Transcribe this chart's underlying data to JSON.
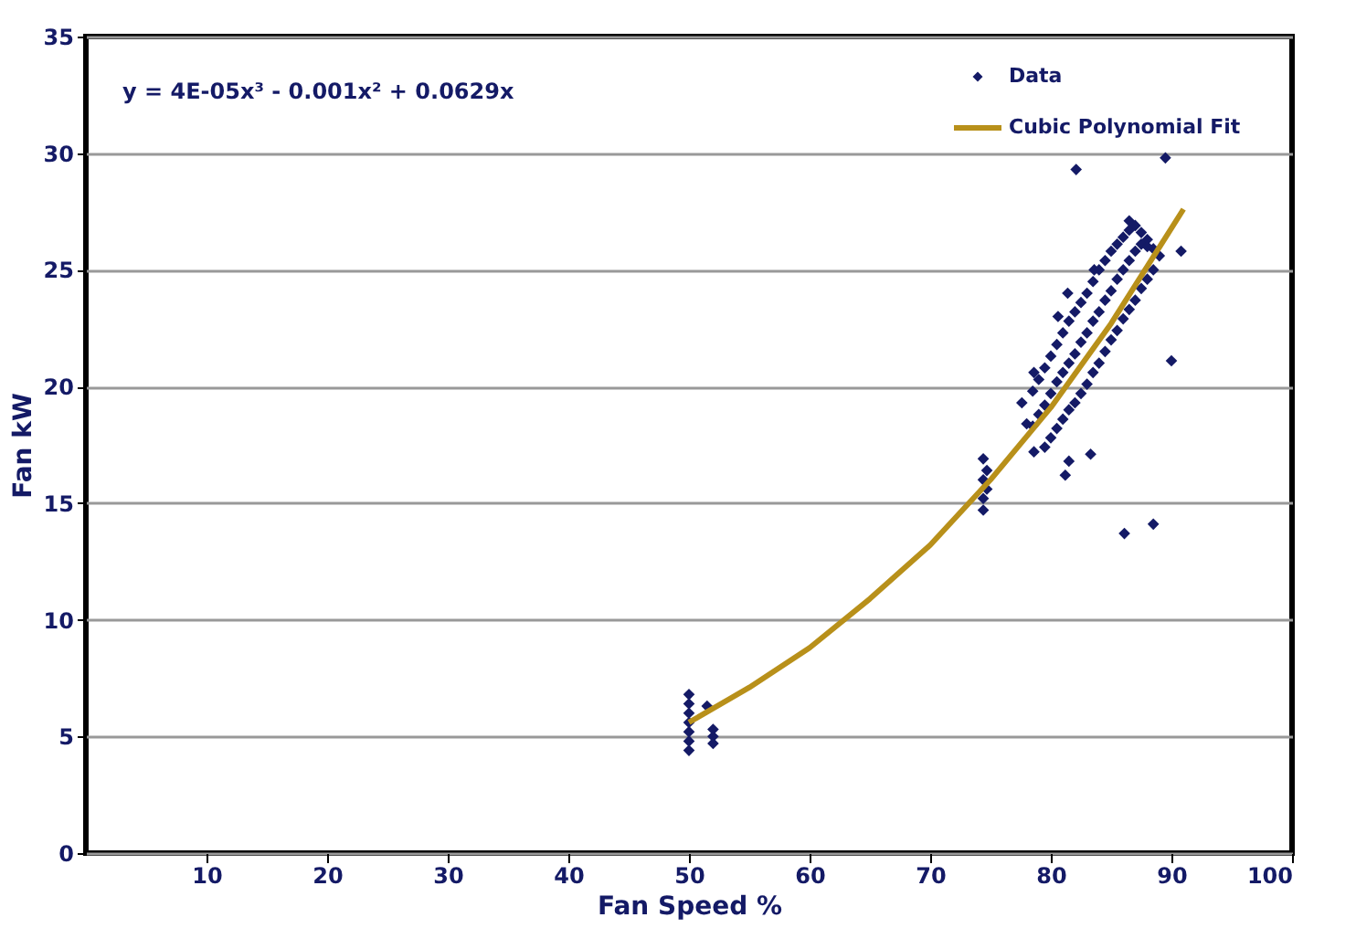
{
  "chart_data": {
    "type": "scatter",
    "xlabel": "Fan Speed %",
    "ylabel": "Fan kW",
    "annotations": [
      "y = 4E-05x³ - 0.001x² + 0.0629x"
    ],
    "xlim": [
      0,
      100
    ],
    "xticks": [
      10,
      20,
      30,
      40,
      50,
      60,
      70,
      80,
      90,
      100
    ],
    "ylim": [
      0,
      35
    ],
    "yticks": [
      0,
      5,
      10,
      15,
      20,
      25,
      30,
      35
    ],
    "grid": "y",
    "legend": "top right",
    "marker": "diamond",
    "series": [
      {
        "name": "Data",
        "color": "#141a66",
        "x": [
          50,
          50,
          50,
          50,
          50,
          50,
          50,
          51.5,
          52,
          52,
          52,
          74.4,
          74.4,
          74.7,
          74.4,
          74.7,
          74.4,
          82.1,
          89.5,
          90.8,
          90,
          86.1,
          88.5,
          83.3,
          81.5,
          81.2,
          78.6,
          80.6,
          81.4,
          83.6,
          86.5,
          77.6,
          78.6,
          78,
          78.5,
          79,
          79.5,
          80,
          80.5,
          81,
          81.5,
          82,
          82.5,
          83,
          83.5,
          84,
          84.5,
          85,
          85.5,
          86,
          86.5,
          87,
          87.5,
          88,
          88.5,
          89,
          79.5,
          80,
          80.5,
          81,
          81.5,
          82,
          82.5,
          83,
          83.5,
          84,
          84.5,
          85,
          85.5,
          86,
          86.5,
          87,
          87.5,
          88,
          88.5,
          78.5,
          79,
          79.5,
          80,
          80.5,
          81,
          81.5,
          82,
          82.5,
          83,
          83.5,
          84,
          84.5,
          85,
          85.5,
          86,
          86.5,
          87,
          87.5,
          88
        ],
        "values": [
          4.4,
          4.8,
          5.2,
          5.6,
          6.0,
          6.4,
          6.8,
          6.3,
          4.7,
          5.0,
          5.3,
          14.7,
          15.2,
          15.6,
          16.0,
          16.4,
          16.9,
          29.3,
          29.8,
          25.8,
          21.1,
          13.7,
          14.1,
          17.1,
          16.8,
          16.2,
          20.6,
          23.0,
          24.0,
          25.0,
          27.1,
          19.3,
          17.2,
          18.4,
          19.8,
          20.3,
          20.8,
          21.3,
          21.8,
          22.3,
          22.8,
          23.2,
          23.6,
          24.0,
          24.5,
          25.0,
          25.4,
          25.8,
          26.1,
          26.4,
          26.7,
          26.9,
          26.6,
          26.3,
          25.9,
          25.6,
          17.4,
          17.8,
          18.2,
          18.6,
          19.0,
          19.3,
          19.7,
          20.1,
          20.6,
          21.0,
          21.5,
          22.0,
          22.4,
          22.9,
          23.3,
          23.7,
          24.2,
          24.6,
          25.0,
          18.3,
          18.8,
          19.2,
          19.7,
          20.2,
          20.6,
          21.0,
          21.4,
          21.9,
          22.3,
          22.8,
          23.2,
          23.7,
          24.1,
          24.6,
          25.0,
          25.4,
          25.8,
          26.1,
          26.0
        ]
      },
      {
        "name": "Cubic Polynomial Fit",
        "color": "#b8901a",
        "type": "line",
        "marker": "none",
        "x": [
          50,
          55,
          60,
          65,
          70,
          75,
          80,
          85,
          91
        ],
        "values": [
          5.6,
          7.1,
          8.8,
          10.9,
          13.2,
          16.0,
          19.1,
          22.7,
          27.6
        ]
      }
    ]
  }
}
